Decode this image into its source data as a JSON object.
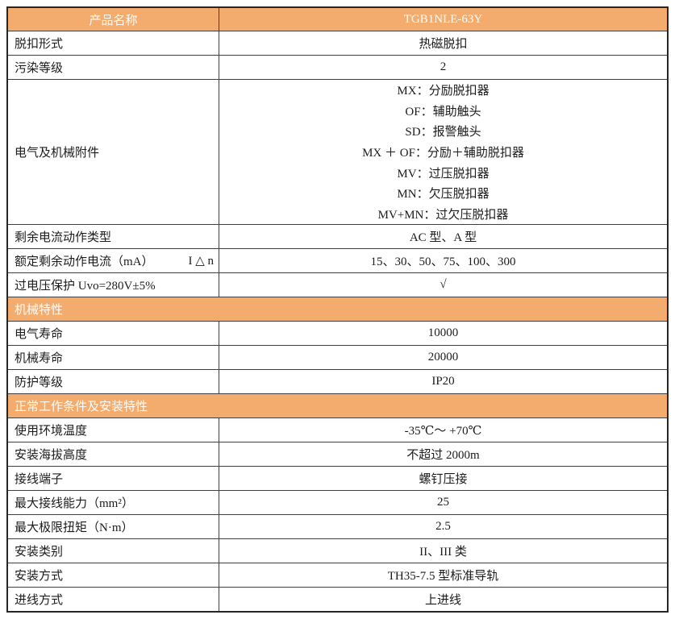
{
  "colors": {
    "accent": "#F3AC6E",
    "border": "#3F3F3F",
    "text": "#1C1C1C",
    "header_text": "#FFFCF7"
  },
  "table": {
    "header": {
      "left": "产品名称",
      "right": "TGB1NLE-63Y"
    },
    "rows": [
      {
        "type": "row",
        "label": "脱扣形式",
        "value": "热磁脱扣"
      },
      {
        "type": "row",
        "label": "污染等级",
        "value": "2"
      },
      {
        "type": "multirow",
        "label": "电气及机械附件",
        "values": [
          "MX：分励脱扣器",
          "OF：辅助触头",
          "SD：报警触头",
          "MX ＋ OF：分励＋辅助脱扣器",
          "MV：过压脱扣器",
          "MN：欠压脱扣器",
          "MV+MN：过欠压脱扣器"
        ]
      },
      {
        "type": "row",
        "label": "剩余电流动作类型",
        "value": "AC 型、A 型"
      },
      {
        "type": "row",
        "label": "额定剩余动作电流（mA）",
        "label_suffix": "I △ n",
        "value": "15、30、50、75、100、300"
      },
      {
        "type": "row",
        "label": "过电压保护 Uvo=280V±5%",
        "value": "√"
      },
      {
        "type": "section",
        "label": "机械特性"
      },
      {
        "type": "row",
        "label": "电气寿命",
        "value": "10000"
      },
      {
        "type": "row",
        "label": "机械寿命",
        "value": "20000"
      },
      {
        "type": "row",
        "label": "防护等级",
        "value": "IP20"
      },
      {
        "type": "section",
        "label": "正常工作条件及安装特性"
      },
      {
        "type": "row",
        "label": "使用环境温度",
        "value": "-35℃～ +70℃"
      },
      {
        "type": "row",
        "label": "安装海拔高度",
        "value": "不超过 2000m"
      },
      {
        "type": "row",
        "label": "接线端子",
        "value": "螺钉压接"
      },
      {
        "type": "row",
        "label": "最大接线能力（mm²）",
        "value": "25"
      },
      {
        "type": "row",
        "label": "最大极限扭矩（N·m）",
        "value": "2.5"
      },
      {
        "type": "row",
        "label": "安装类别",
        "value": "II、III 类"
      },
      {
        "type": "row",
        "label": "安装方式",
        "value": "TH35-7.5 型标准导轨"
      },
      {
        "type": "row",
        "label": "进线方式",
        "value": "上进线"
      }
    ]
  }
}
